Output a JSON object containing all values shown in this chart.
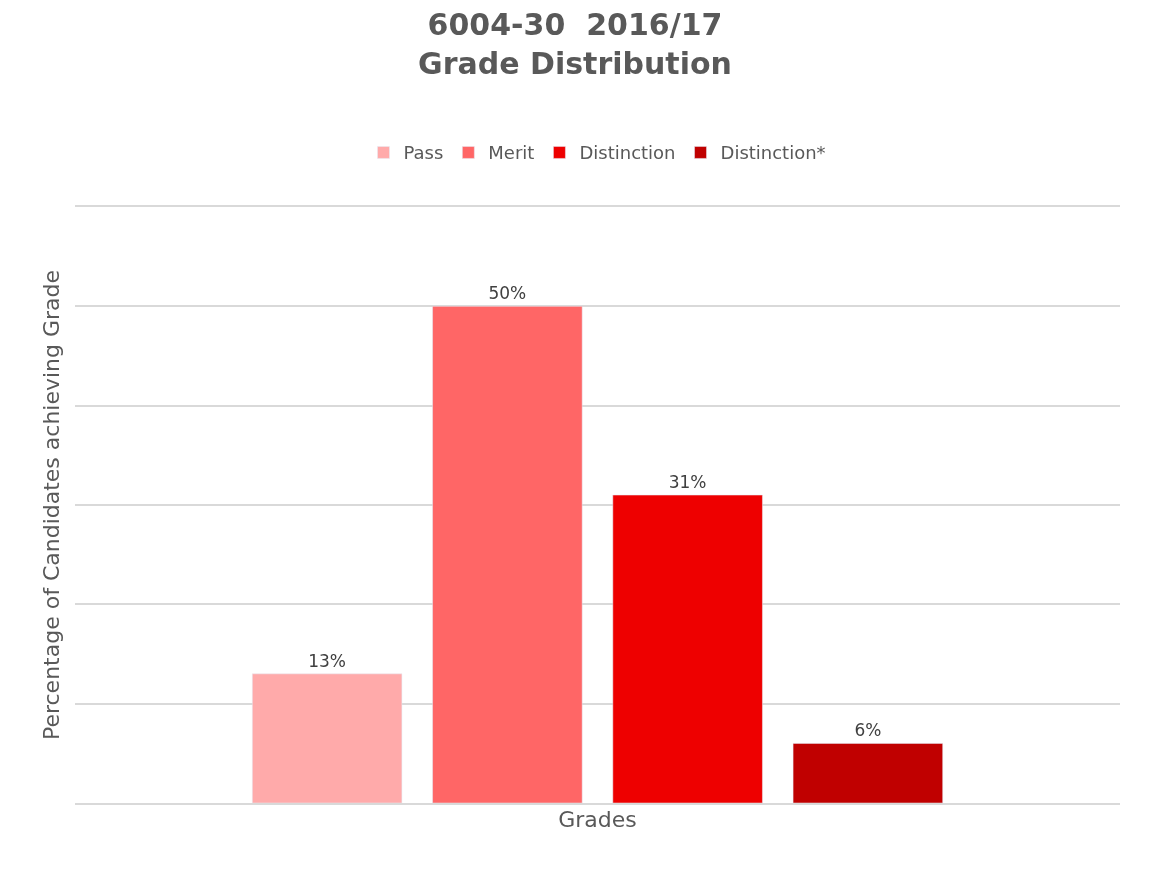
{
  "chart_data": {
    "type": "bar",
    "title": "6004-30  2016/17\nGrade Distribution",
    "xlabel": "Grades",
    "ylabel": "Percentage of Candidates achieving Grade",
    "categories": [
      null
    ],
    "series": [
      {
        "name": "Pass",
        "color": "#ffaaaa",
        "values": [
          13
        ],
        "value_labels": [
          "13%"
        ]
      },
      {
        "name": "Merit",
        "color": "#ff6666",
        "values": [
          50
        ],
        "value_labels": [
          "50%"
        ]
      },
      {
        "name": "Distinction",
        "color": "#ee0000",
        "values": [
          31
        ],
        "value_labels": [
          "31%"
        ]
      },
      {
        "name": "Distinction*",
        "color": "#c00000",
        "values": [
          6
        ],
        "value_labels": [
          "6%"
        ]
      }
    ],
    "ylim": [
      0,
      60
    ],
    "grid": "y",
    "legend": "top",
    "tick_labels": false
  }
}
